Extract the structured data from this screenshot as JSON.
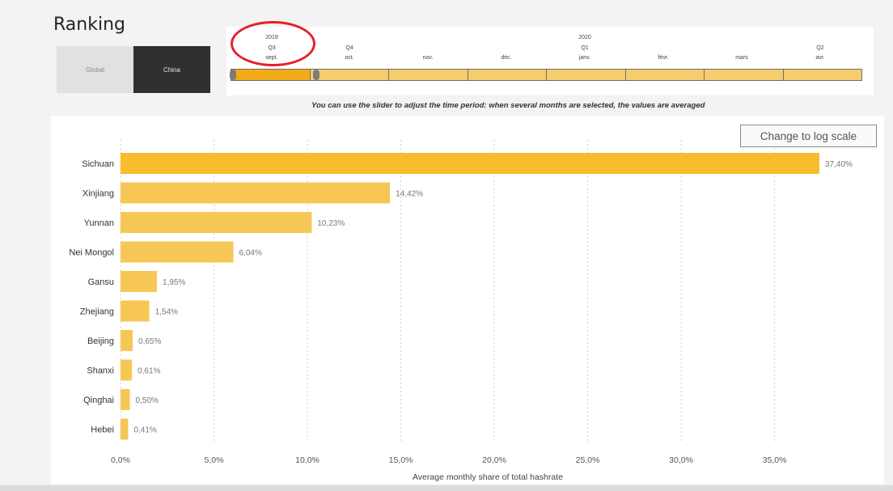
{
  "title": "Ranking",
  "region_toggle": {
    "options": [
      "Global",
      "China"
    ],
    "selected": "China"
  },
  "timeline": {
    "years": [
      "2019",
      "2020"
    ],
    "quarters": [
      "Q3",
      "Q4",
      "Q1",
      "Q2"
    ],
    "months": [
      "sept.",
      "oct.",
      "nov.",
      "déc.",
      "janv.",
      "févr.",
      "mars",
      "avr."
    ],
    "selected_months": [
      "sept."
    ],
    "help_text": "You can use the slider to adjust the time period: when several months are selected, the values are averaged"
  },
  "log_scale_button": "Change to log scale",
  "colors": {
    "bar": "#f8bc2c",
    "bar_light": "#f7c756",
    "slider_selected": "#f2ac17",
    "slider": "#f5cd6e",
    "highlight": "#e5202a"
  },
  "chart_data": {
    "type": "bar",
    "orientation": "horizontal",
    "categories": [
      "Sichuan",
      "Xinjiang",
      "Yunnan",
      "Nei Mongol",
      "Gansu",
      "Zhejiang",
      "Beijing",
      "Shanxi",
      "Qinghai",
      "Hebei"
    ],
    "values": [
      37.4,
      14.42,
      10.23,
      6.04,
      1.95,
      1.54,
      0.65,
      0.61,
      0.5,
      0.41
    ],
    "value_labels": [
      "37,40%",
      "14,42%",
      "10,23%",
      "6,04%",
      "1,95%",
      "1,54%",
      "0,65%",
      "0,61%",
      "0,50%",
      "0,41%"
    ],
    "x_ticks": [
      0,
      5,
      10,
      15,
      20,
      25,
      30,
      35
    ],
    "x_tick_labels": [
      "0,0%",
      "5,0%",
      "10,0%",
      "15,0%",
      "20,0%",
      "25,0%",
      "30,0%",
      "35,0%"
    ],
    "xlabel": "Average monthly share of total hashrate",
    "xlim": [
      0,
      37.4
    ],
    "grid": "vertical-dotted"
  }
}
